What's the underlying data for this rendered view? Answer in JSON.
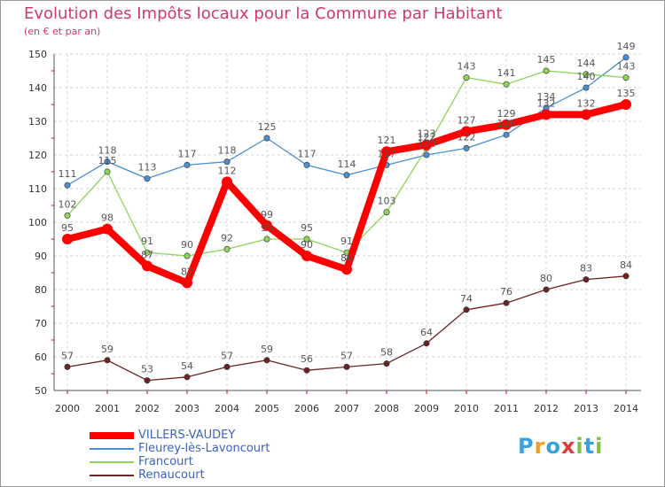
{
  "chart_data": {
    "type": "line",
    "title": "Evolution des Impôts locaux pour la Commune par Habitant",
    "subtitle": "(en € et par an)",
    "xlabel": "",
    "ylabel": "",
    "ylim": [
      50,
      150
    ],
    "yticks": [
      50,
      60,
      70,
      80,
      90,
      100,
      110,
      120,
      130,
      140,
      150
    ],
    "categories": [
      "2000",
      "2001",
      "2002",
      "2003",
      "2004",
      "2005",
      "2006",
      "2007",
      "2008",
      "2009",
      "2010",
      "2011",
      "2012",
      "2013",
      "2014"
    ],
    "grid": true,
    "legend_position": "bottom-left",
    "series": [
      {
        "name": "VILLERS-VAUDEY",
        "color": "#ff0000",
        "values": [
          95,
          98,
          87,
          82,
          112,
          99,
          90,
          86,
          121,
          123,
          127,
          129,
          132,
          132,
          135
        ],
        "labels": [
          "95",
          "98",
          "87",
          "82",
          "112",
          "99",
          "90",
          "86",
          "121",
          "123",
          "127",
          "129",
          "132",
          "132",
          "135"
        ]
      },
      {
        "name": "Fleurey-lès-Lavoncourt",
        "color": "#4a8fcf",
        "values": [
          111,
          118,
          113,
          117,
          118,
          125,
          117,
          114,
          117,
          120,
          122,
          126,
          134,
          140,
          149
        ],
        "labels": [
          "111",
          "118",
          "113",
          "117",
          "118",
          "125",
          "117",
          "114",
          "117",
          "120",
          "122",
          "126",
          "134",
          "140",
          "149"
        ]
      },
      {
        "name": "Francourt",
        "color": "#8fd35a",
        "values": [
          102,
          115,
          91,
          90,
          92,
          95,
          95,
          91,
          103,
          122,
          143,
          141,
          145,
          144,
          143
        ],
        "labels": [
          "102",
          "115",
          "91",
          "90",
          "92",
          "95",
          "95",
          "91",
          "103",
          "122",
          "143",
          "141",
          "145",
          "144",
          "143"
        ]
      },
      {
        "name": "Renaucourt",
        "color": "#6b2424",
        "values": [
          57,
          59,
          53,
          54,
          57,
          59,
          56,
          57,
          58,
          64,
          74,
          76,
          80,
          83,
          84
        ],
        "labels": [
          "57",
          "59",
          "53",
          "54",
          "57",
          "59",
          "56",
          "57",
          "58",
          "64",
          "74",
          "76",
          "80",
          "83",
          "84"
        ]
      }
    ]
  },
  "logo": {
    "letters": [
      "P",
      "r",
      "o",
      "x",
      "i",
      "t",
      "i"
    ],
    "colors": [
      "#3aa0e0",
      "#f0a020",
      "#3aa0e0",
      "#e03a3a",
      "#80c040",
      "#3aa0e0",
      "#80c040"
    ]
  }
}
